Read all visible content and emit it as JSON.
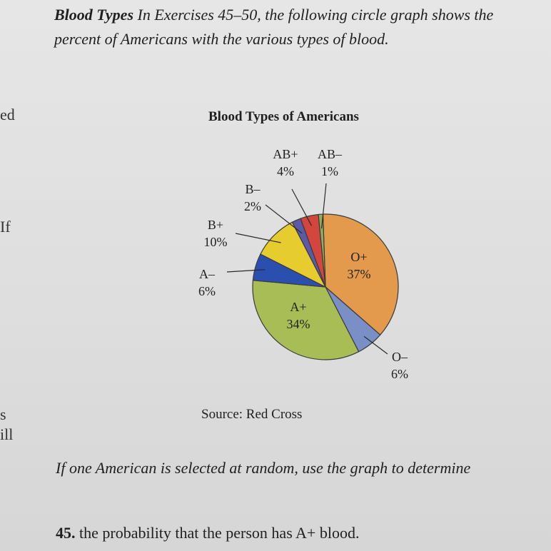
{
  "intro": {
    "heading": "Blood Types",
    "text": "In Exercises 45–50, the following circle graph shows the percent of Americans with the various types of blood."
  },
  "margin_fragments": [
    "ed",
    "If",
    "s",
    "ill"
  ],
  "chart_data": {
    "type": "pie",
    "title": "Blood Types of Americans",
    "source": "Source: Red Cross",
    "slices": [
      {
        "label": "O+",
        "percent": "37%",
        "value": 37,
        "color": "#e39a4c"
      },
      {
        "label": "O–",
        "percent": "6%",
        "value": 6,
        "color": "#7b8fc7"
      },
      {
        "label": "A+",
        "percent": "34%",
        "value": 34,
        "color": "#a8bd56"
      },
      {
        "label": "A–",
        "percent": "6%",
        "value": 6,
        "color": "#2b4fae"
      },
      {
        "label": "B+",
        "percent": "10%",
        "value": 10,
        "color": "#e6cc2e"
      },
      {
        "label": "B–",
        "percent": "2%",
        "value": 2,
        "color": "#5a5aa8"
      },
      {
        "label": "AB+",
        "percent": "4%",
        "value": 4,
        "color": "#d2463e"
      },
      {
        "label": "AB–",
        "percent": "1%",
        "value": 1,
        "color": "#8fae5a"
      }
    ]
  },
  "question": "If one American is selected at random, use the graph to determine",
  "exercise": {
    "number": "45.",
    "text": "the probability that the person has A+ blood."
  }
}
